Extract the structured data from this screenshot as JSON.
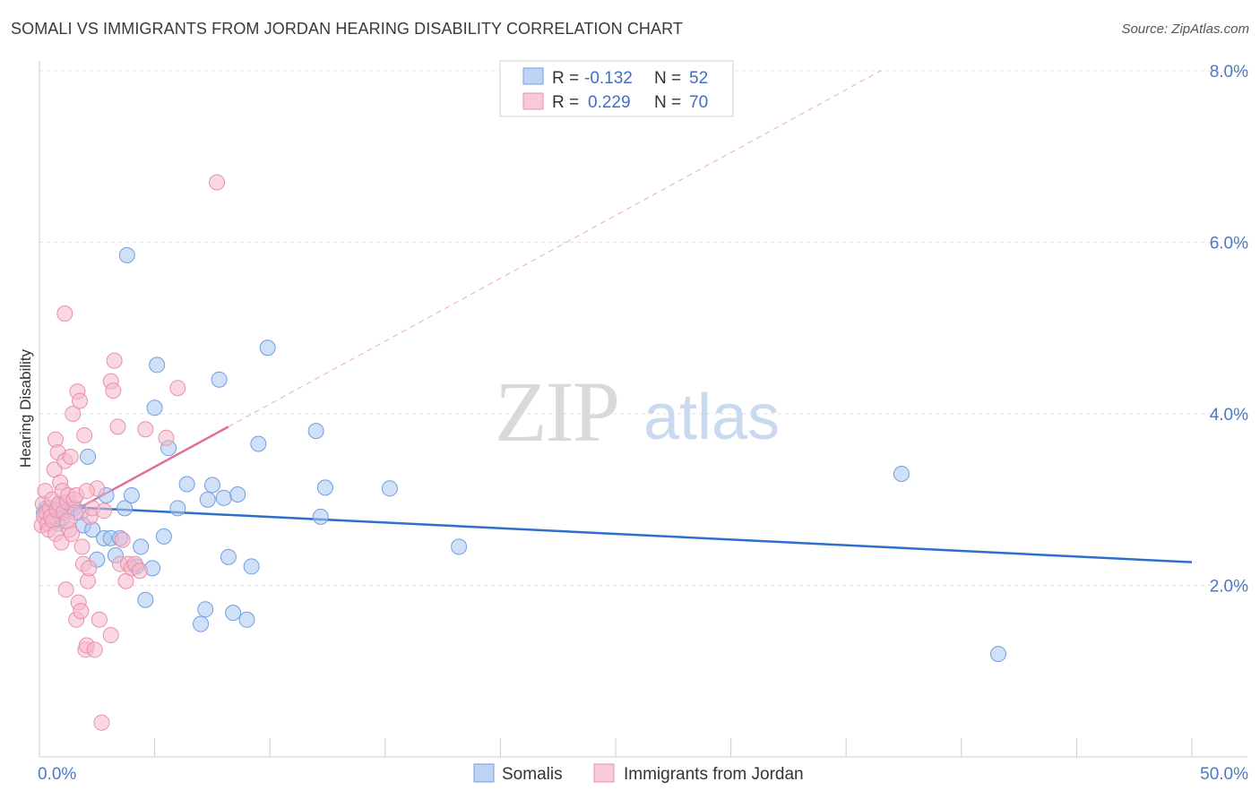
{
  "header": {
    "title": "SOMALI VS IMMIGRANTS FROM JORDAN HEARING DISABILITY CORRELATION CHART",
    "source": "Source: ZipAtlas.com"
  },
  "watermark": {
    "zip": "ZIP",
    "atlas": "atlas"
  },
  "legend_box": {
    "rows": [
      {
        "r_label": "R =",
        "r_value": "-0.132",
        "n_label": "N =",
        "n_value": "52",
        "color": "#a9c6f0"
      },
      {
        "r_label": "R =",
        "r_value": "0.229",
        "n_label": "N =",
        "n_value": "70",
        "color": "#f5b8cb"
      }
    ]
  },
  "bottom_legend": [
    {
      "label": "Somalis",
      "color": "#a9c6f0"
    },
    {
      "label": "Immigrants from Jordan",
      "color": "#f5b8cb"
    }
  ],
  "chart_data": {
    "type": "scatter",
    "title": "SOMALI VS IMMIGRANTS FROM JORDAN HEARING DISABILITY CORRELATION CHART",
    "xlabel": "",
    "ylabel": "Hearing Disability",
    "xlim": [
      0,
      50
    ],
    "ylim": [
      0,
      8
    ],
    "x_tick_labels": [
      {
        "value": 0,
        "label": "0.0%"
      },
      {
        "value": 50,
        "label": "50.0%"
      }
    ],
    "y_tick_labels": [
      {
        "value": 2,
        "label": "2.0%"
      },
      {
        "value": 4,
        "label": "4.0%"
      },
      {
        "value": 6,
        "label": "6.0%"
      },
      {
        "value": 8,
        "label": "8.0%"
      }
    ],
    "grid": true,
    "legend_position": "top-center",
    "series": [
      {
        "name": "Somalis",
        "color": "#6f9fe0",
        "fill": "#a9c6f0",
        "trend_color": "#2f6fcc",
        "trend": {
          "x": [
            0,
            50
          ],
          "y": [
            2.93,
            2.27
          ]
        },
        "points": [
          [
            0.2,
            2.85
          ],
          [
            0.3,
            2.9
          ],
          [
            0.5,
            2.8
          ],
          [
            0.6,
            2.75
          ],
          [
            0.8,
            2.72
          ],
          [
            0.9,
            2.93
          ],
          [
            1.0,
            2.78
          ],
          [
            1.2,
            2.88
          ],
          [
            1.5,
            2.9
          ],
          [
            1.8,
            2.85
          ],
          [
            1.9,
            2.7
          ],
          [
            2.1,
            3.5
          ],
          [
            2.3,
            2.65
          ],
          [
            2.5,
            2.3
          ],
          [
            2.8,
            2.55
          ],
          [
            2.9,
            3.05
          ],
          [
            3.1,
            2.55
          ],
          [
            3.3,
            2.35
          ],
          [
            3.5,
            2.55
          ],
          [
            3.7,
            2.9
          ],
          [
            3.8,
            5.85
          ],
          [
            4.0,
            3.05
          ],
          [
            4.2,
            2.22
          ],
          [
            4.4,
            2.45
          ],
          [
            4.6,
            1.83
          ],
          [
            4.9,
            2.2
          ],
          [
            5.0,
            4.07
          ],
          [
            5.1,
            4.57
          ],
          [
            5.4,
            2.57
          ],
          [
            5.6,
            3.6
          ],
          [
            6.0,
            2.9
          ],
          [
            6.4,
            3.18
          ],
          [
            7.0,
            1.55
          ],
          [
            7.2,
            1.72
          ],
          [
            7.3,
            3.0
          ],
          [
            7.5,
            3.17
          ],
          [
            7.8,
            4.4
          ],
          [
            8.0,
            3.02
          ],
          [
            8.2,
            2.33
          ],
          [
            8.4,
            1.68
          ],
          [
            8.6,
            3.06
          ],
          [
            9.0,
            1.6
          ],
          [
            9.2,
            2.22
          ],
          [
            9.5,
            3.65
          ],
          [
            9.9,
            4.77
          ],
          [
            12.0,
            3.8
          ],
          [
            12.2,
            2.8
          ],
          [
            12.4,
            3.14
          ],
          [
            15.2,
            3.13
          ],
          [
            18.2,
            2.45
          ],
          [
            37.4,
            3.3
          ],
          [
            41.6,
            1.2
          ]
        ]
      },
      {
        "name": "Immigrants from Jordan",
        "color": "#e890ad",
        "fill": "#f5b8cb",
        "trend_color": "#e0709a",
        "trend": {
          "x": [
            0,
            8.2
          ],
          "y": [
            2.65,
            3.85
          ]
        },
        "trend_extension": {
          "x": [
            8.2,
            36.5
          ],
          "y": [
            3.85,
            8.0
          ]
        },
        "points": [
          [
            0.1,
            2.7
          ],
          [
            0.15,
            2.95
          ],
          [
            0.2,
            2.8
          ],
          [
            0.25,
            3.1
          ],
          [
            0.3,
            2.85
          ],
          [
            0.35,
            2.72
          ],
          [
            0.4,
            2.65
          ],
          [
            0.45,
            2.9
          ],
          [
            0.5,
            2.8
          ],
          [
            0.55,
            3.0
          ],
          [
            0.6,
            2.75
          ],
          [
            0.65,
            3.35
          ],
          [
            0.7,
            2.6
          ],
          [
            0.7,
            3.7
          ],
          [
            0.75,
            2.88
          ],
          [
            0.8,
            3.55
          ],
          [
            0.85,
            2.95
          ],
          [
            0.9,
            3.2
          ],
          [
            0.95,
            2.5
          ],
          [
            1.0,
            3.1
          ],
          [
            1.05,
            2.85
          ],
          [
            1.1,
            3.45
          ],
          [
            1.15,
            1.95
          ],
          [
            1.1,
            5.17
          ],
          [
            1.2,
            2.97
          ],
          [
            1.25,
            3.05
          ],
          [
            1.3,
            2.65
          ],
          [
            1.35,
            3.5
          ],
          [
            1.4,
            2.6
          ],
          [
            1.45,
            4.0
          ],
          [
            1.5,
            3.0
          ],
          [
            1.55,
            2.85
          ],
          [
            1.6,
            3.05
          ],
          [
            1.6,
            1.6
          ],
          [
            1.65,
            4.26
          ],
          [
            1.7,
            1.8
          ],
          [
            1.75,
            4.15
          ],
          [
            1.8,
            1.7
          ],
          [
            1.85,
            2.45
          ],
          [
            1.9,
            2.25
          ],
          [
            1.95,
            3.75
          ],
          [
            2.0,
            1.25
          ],
          [
            2.05,
            1.3
          ],
          [
            2.1,
            2.05
          ],
          [
            2.15,
            2.2
          ],
          [
            2.2,
            2.8
          ],
          [
            2.3,
            2.9
          ],
          [
            2.4,
            1.25
          ],
          [
            2.5,
            3.13
          ],
          [
            2.6,
            1.6
          ],
          [
            2.7,
            0.4
          ],
          [
            2.8,
            2.87
          ],
          [
            3.1,
            1.42
          ],
          [
            3.1,
            4.38
          ],
          [
            3.2,
            4.27
          ],
          [
            3.25,
            4.62
          ],
          [
            3.4,
            3.85
          ],
          [
            3.5,
            2.25
          ],
          [
            3.6,
            2.53
          ],
          [
            3.75,
            2.05
          ],
          [
            3.85,
            2.25
          ],
          [
            4.0,
            2.2
          ],
          [
            4.15,
            2.25
          ],
          [
            4.35,
            2.17
          ],
          [
            4.6,
            3.82
          ],
          [
            5.5,
            3.72
          ],
          [
            6.0,
            4.3
          ],
          [
            7.7,
            6.7
          ],
          [
            2.05,
            3.1
          ],
          [
            1.2,
            2.75
          ]
        ]
      }
    ]
  }
}
